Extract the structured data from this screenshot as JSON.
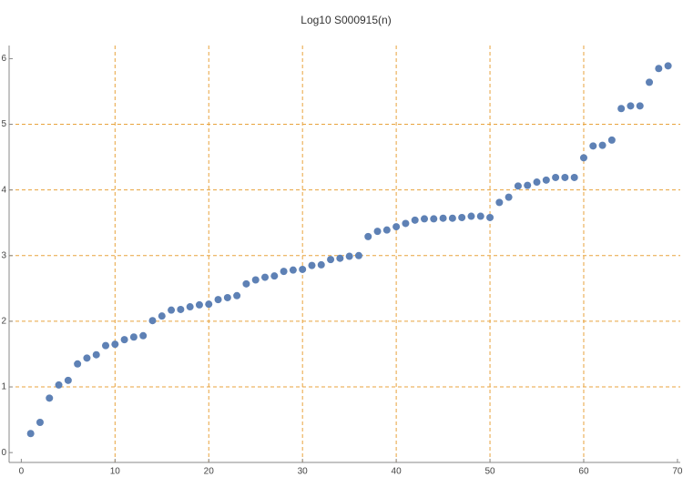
{
  "chart_data": {
    "type": "scatter",
    "title": "Log10 S000915(n)",
    "x": [
      1,
      2,
      3,
      4,
      5,
      6,
      7,
      8,
      9,
      10,
      11,
      12,
      13,
      14,
      15,
      16,
      17,
      18,
      19,
      20,
      21,
      22,
      23,
      24,
      25,
      26,
      27,
      28,
      29,
      30,
      31,
      32,
      33,
      34,
      35,
      36,
      37,
      38,
      39,
      40,
      41,
      42,
      43,
      44,
      45,
      46,
      47,
      48,
      49,
      50,
      51,
      52,
      53,
      54,
      55,
      56,
      57,
      58,
      59,
      60,
      61,
      62,
      63,
      64,
      65,
      66,
      67,
      68,
      69
    ],
    "values": [
      0.29,
      0.46,
      0.83,
      1.03,
      1.1,
      1.35,
      1.44,
      1.49,
      1.63,
      1.65,
      1.72,
      1.76,
      1.78,
      2.01,
      2.08,
      2.17,
      2.18,
      2.22,
      2.25,
      2.26,
      2.33,
      2.36,
      2.39,
      2.57,
      2.63,
      2.67,
      2.69,
      2.76,
      2.78,
      2.79,
      2.85,
      2.86,
      2.94,
      2.96,
      2.99,
      3.0,
      3.29,
      3.37,
      3.39,
      3.44,
      3.49,
      3.54,
      3.56,
      3.56,
      3.57,
      3.57,
      3.58,
      3.6,
      3.6,
      3.58,
      3.81,
      3.89,
      4.06,
      4.07,
      4.12,
      4.15,
      4.19,
      4.19,
      4.19,
      4.49,
      4.67,
      4.68,
      4.76,
      5.24,
      5.28,
      5.28,
      5.64,
      5.85,
      5.89
    ],
    "color": "#5e81b5",
    "grid_color": "#e8a33d",
    "xlim": [
      -1.3,
      70.3
    ],
    "ylim": [
      -0.15,
      6.2
    ],
    "xticks": [
      0,
      10,
      20,
      30,
      40,
      50,
      60,
      70
    ],
    "yticks": [
      0,
      1,
      2,
      3,
      4,
      5,
      6
    ],
    "xgrid": [
      10,
      20,
      30,
      40,
      50,
      60
    ],
    "ygrid": [
      1,
      2,
      3,
      4,
      5
    ]
  }
}
